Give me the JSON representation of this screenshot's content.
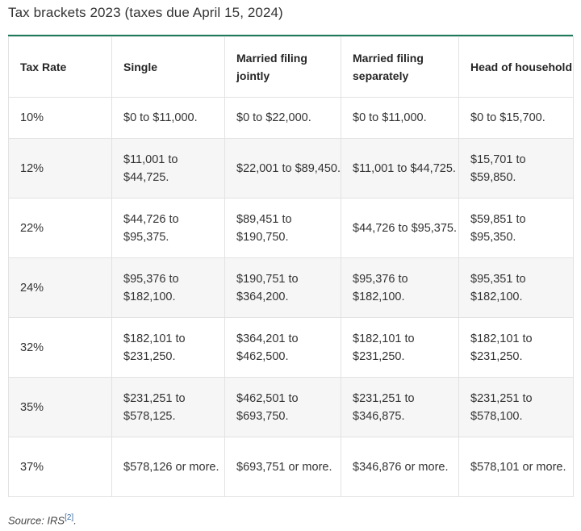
{
  "title": "Tax brackets 2023 (taxes due April 15, 2024)",
  "headers": [
    "Tax Rate",
    "Single",
    "Married filing jointly",
    "Married filing separately",
    "Head of household"
  ],
  "rows": [
    [
      "10%",
      "$0 to $11,000.",
      "$0 to $22,000.",
      "$0 to $11,000.",
      "$0 to $15,700."
    ],
    [
      "12%",
      "$11,001 to $44,725.",
      "$22,001 to $89,450.",
      "$11,001 to $44,725.",
      "$15,701 to $59,850."
    ],
    [
      "22%",
      "$44,726 to $95,375.",
      "$89,451 to $190,750.",
      "$44,726 to $95,375.",
      "$59,851 to $95,350."
    ],
    [
      "24%",
      "$95,376 to $182,100.",
      "$190,751 to $364,200.",
      "$95,376 to $182,100.",
      "$95,351 to $182,100."
    ],
    [
      "32%",
      "$182,101 to $231,250.",
      "$364,201 to $462,500.",
      "$182,101 to $231,250.",
      "$182,101 to $231,250."
    ],
    [
      "35%",
      "$231,251 to $578,125.",
      "$462,501 to $693,750.",
      "$231,251 to $346,875.",
      "$231,251 to $578,100."
    ],
    [
      "37%",
      "$578,126 or more.",
      "$693,751 or more.",
      "$346,876 or more.",
      "$578,101 or more."
    ]
  ],
  "source": {
    "label": "Source: IRS",
    "ref": "[2]",
    "suffix": "."
  },
  "colors": {
    "accent_rule": "#1f7a5a",
    "shaded_row": "#f6f6f6",
    "grid": "#e2e2e2"
  }
}
